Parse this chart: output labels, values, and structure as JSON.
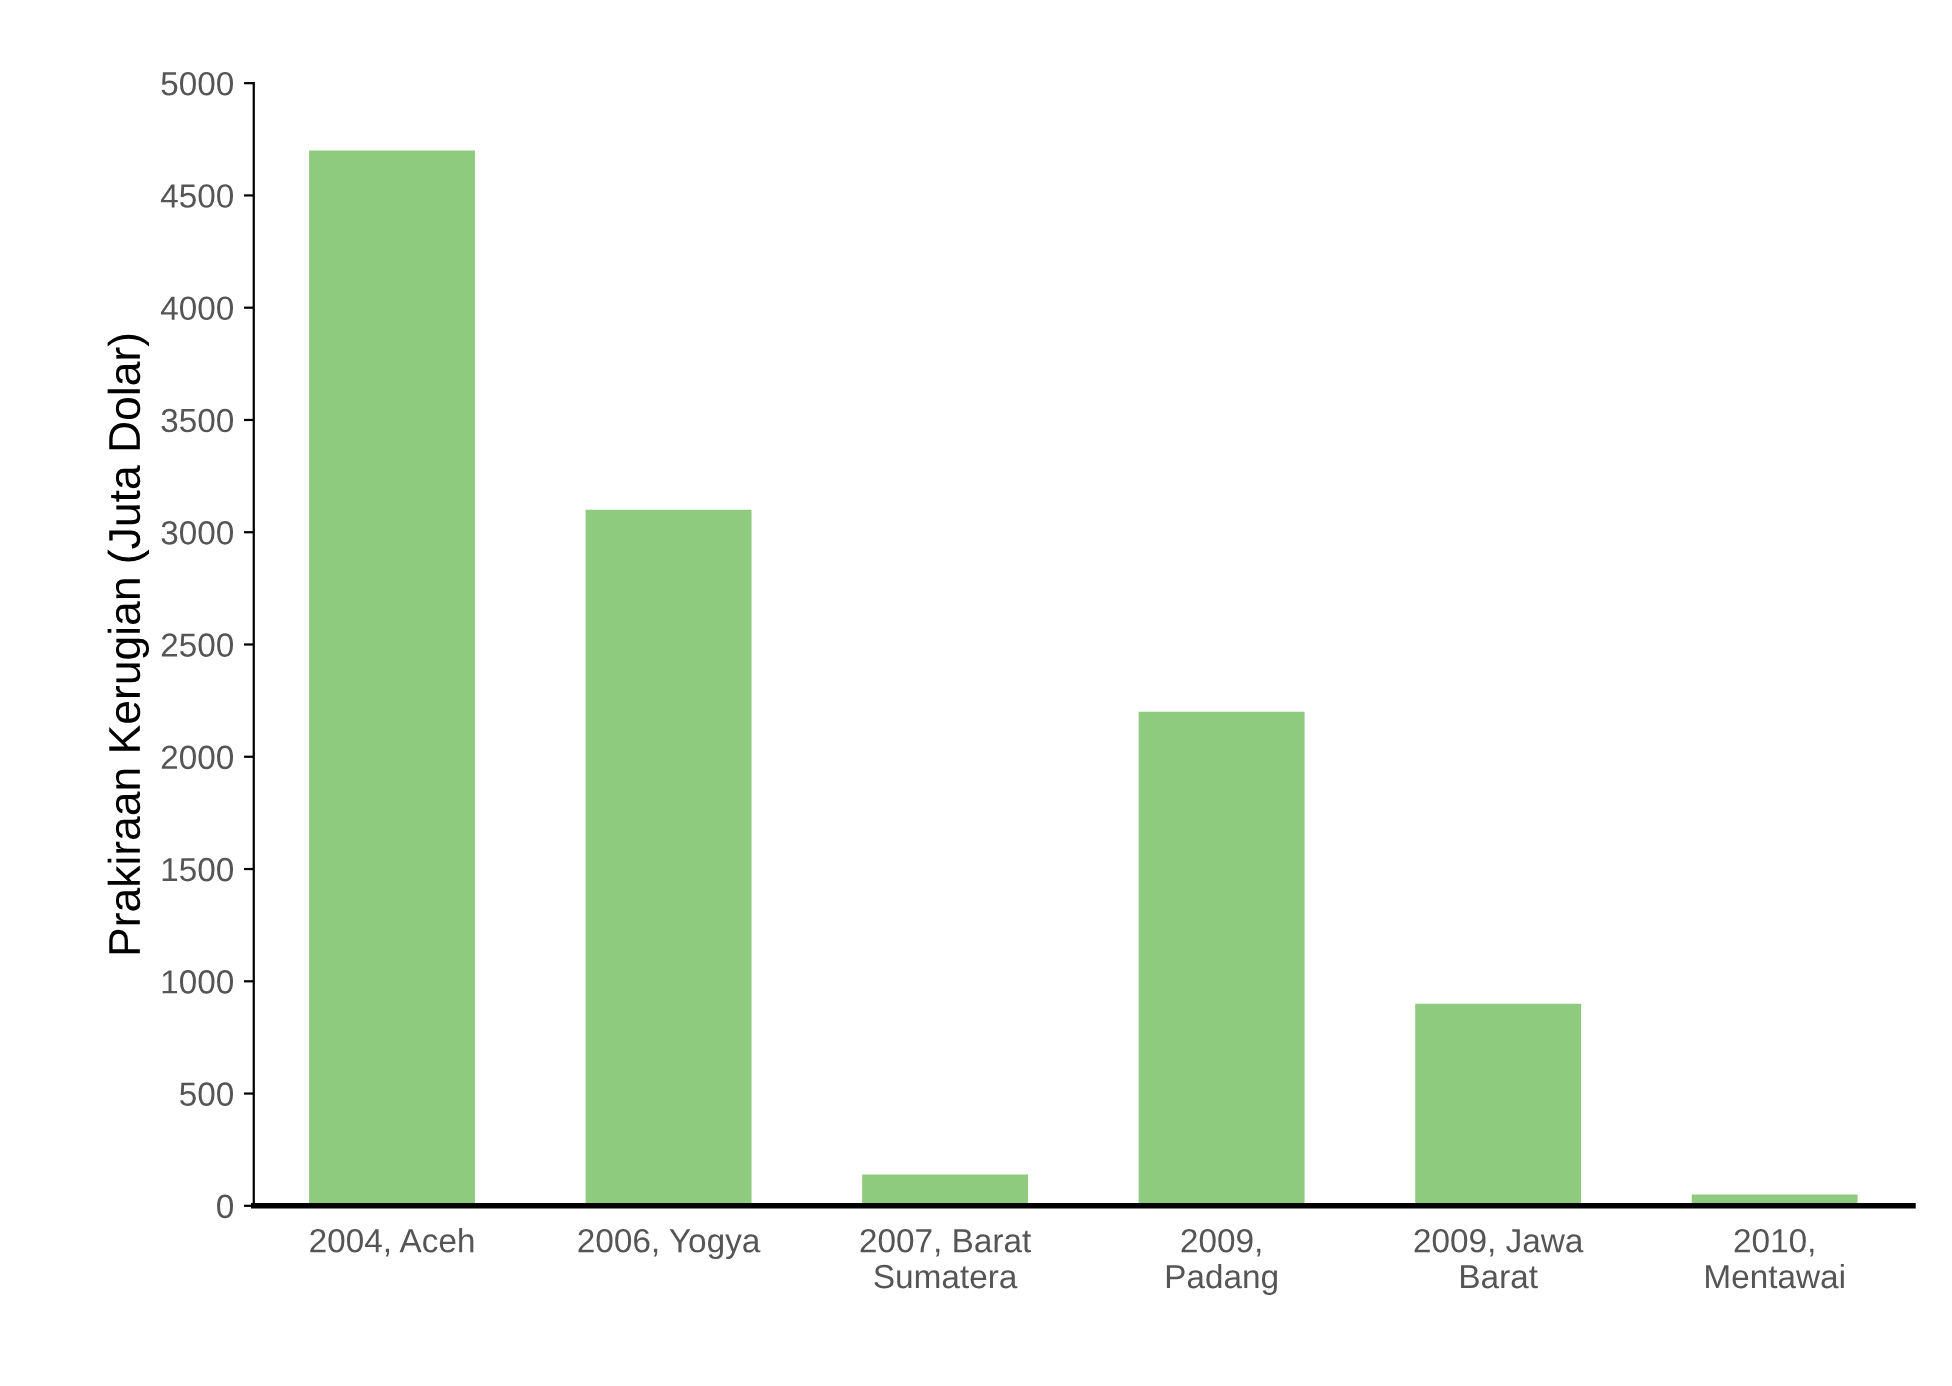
{
  "chart_data": {
    "type": "bar",
    "ylabel": "Prakiraan Kerugian (Juta Dolar)",
    "categories": [
      "2004, Aceh",
      "2006, Yogya",
      "2007, Barat\nSumatera",
      "2009,\nPadang",
      "2009, Jawa\nBarat",
      "2010,\nMentawai"
    ],
    "values": [
      4700,
      3100,
      140,
      2200,
      900,
      50
    ],
    "color": "#8fcb7e",
    "ylim": [
      0,
      5000
    ],
    "yticks": [
      0,
      500,
      1000,
      1500,
      2000,
      2500,
      3000,
      3500,
      4000,
      4500,
      5000
    ],
    "grid": false
  }
}
